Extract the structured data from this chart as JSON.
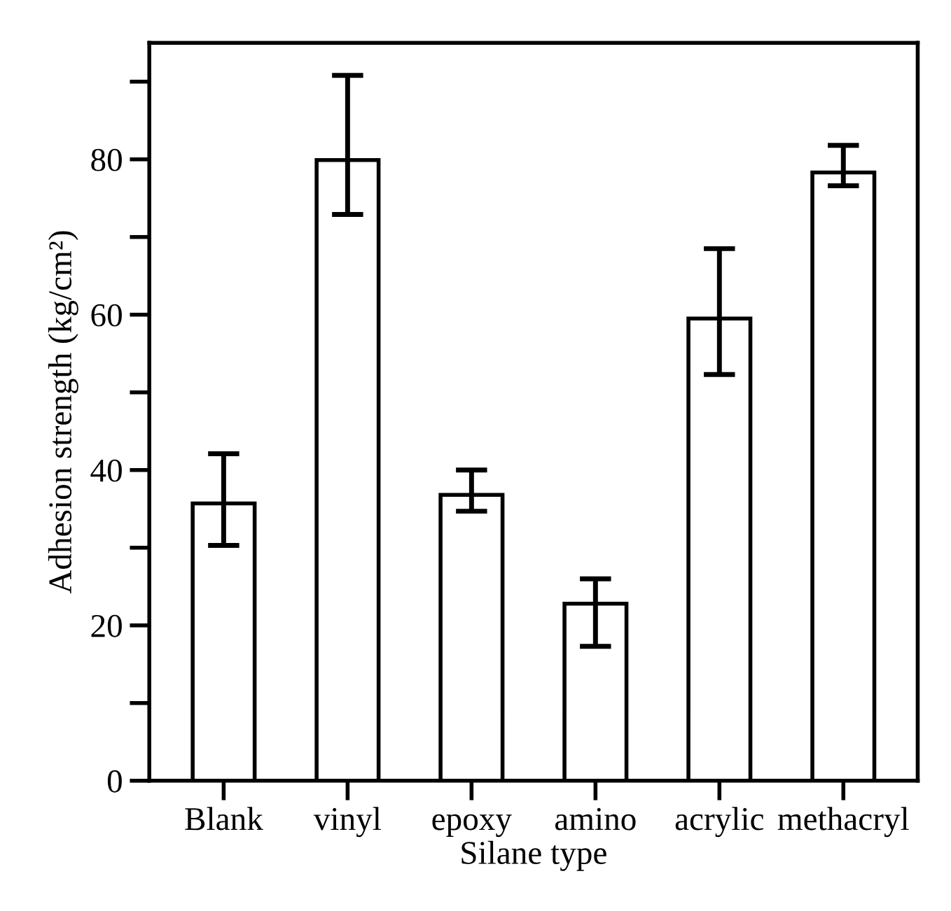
{
  "chart_data": {
    "type": "bar",
    "xlabel": "Silane type",
    "ylabel": "Adhesion strength (kg/cm²)",
    "categories": [
      "Blank",
      "vinyl",
      "epoxy",
      "amino",
      "acrylic",
      "methacryl"
    ],
    "values": [
      35.7,
      79.9,
      36.8,
      22.8,
      59.5,
      78.3
    ],
    "errors": [
      [
        30.3,
        42.1
      ],
      [
        72.9,
        90.8
      ],
      [
        34.7,
        40.0
      ],
      [
        17.3,
        26.0
      ],
      [
        52.3,
        68.5
      ],
      [
        76.6,
        81.8
      ]
    ],
    "color": "#ffffff",
    "ylim": [
      0,
      95
    ],
    "yticks": [
      0,
      {
        "value": 10,
        "label": null
      },
      20,
      {
        "value": 30,
        "label": null
      },
      40,
      {
        "value": 50,
        "label": null
      },
      60,
      {
        "value": 70,
        "label": null
      },
      80,
      {
        "value": 90,
        "label": null
      }
    ],
    "grid": false,
    "legend": false
  }
}
